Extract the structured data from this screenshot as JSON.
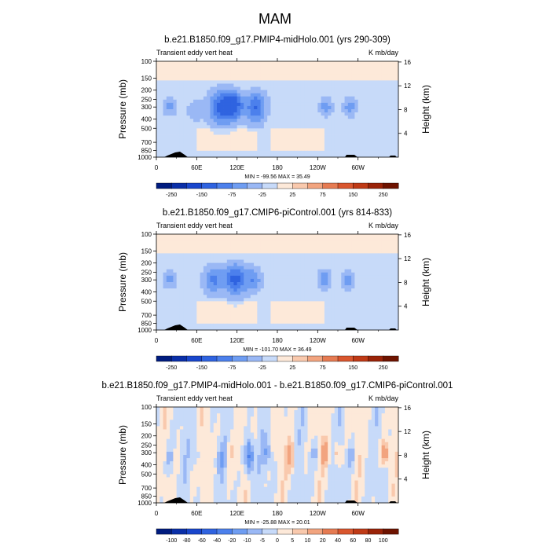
{
  "figure": {
    "title": "MAM"
  },
  "colors": {
    "bg": "#ffffff",
    "axis": "#000000",
    "land": "#000000"
  },
  "chart_data": [
    {
      "type": "heatmap",
      "title": "b.e21.B1850.f09_g17.PMIP4-midHolo.001 (yrs 290-309)",
      "left_label": "Transient eddy vert heat",
      "right_label": "K mb/day",
      "ylabel": "Pressure (mb)",
      "ylabel_right": "Height (km)",
      "x_ticks": [
        "0",
        "60E",
        "120E",
        "180",
        "120W",
        "60W"
      ],
      "y_ticks": [
        "100",
        "150",
        "200",
        "250",
        "300",
        "400",
        "500",
        "700",
        "850",
        "1000"
      ],
      "y_ticks_right": [
        "16",
        "12",
        "8",
        "4"
      ],
      "stats": "MIN = -99.56   MAX =  35.49",
      "min": -99.56,
      "max": 35.49,
      "levels": [
        -300,
        -250,
        -200,
        -150,
        -100,
        -75,
        -50,
        -25,
        0,
        25,
        50,
        75,
        100,
        150,
        200,
        250
      ],
      "label_levels": [
        "-250",
        "-150",
        "-75",
        "-25",
        "25",
        "75",
        "150",
        "250"
      ],
      "colors": [
        "#001c7f",
        "#0a2fa8",
        "#1946cc",
        "#2f63e0",
        "#4c80ec",
        "#6f9df2",
        "#9ab8f5",
        "#c7daf9",
        "#fde9d9",
        "#f9c9ad",
        "#f2a47f",
        "#e67b52",
        "#d9562e",
        "#bf3a16",
        "#9a2308",
        "#6e1300"
      ],
      "eddies": [
        {
          "lon": 20,
          "p": 300,
          "amp": -50,
          "w": 10,
          "h": 0.22
        },
        {
          "lon": 58,
          "p": 330,
          "amp": -35,
          "w": 12,
          "h": 0.28
        },
        {
          "lon": 95,
          "p": 300,
          "amp": -90,
          "w": 18,
          "h": 0.45
        },
        {
          "lon": 115,
          "p": 290,
          "amp": -100,
          "w": 14,
          "h": 0.35
        },
        {
          "lon": 148,
          "p": 300,
          "amp": -90,
          "w": 16,
          "h": 0.4
        },
        {
          "lon": 252,
          "p": 300,
          "amp": -55,
          "w": 10,
          "h": 0.22
        },
        {
          "lon": 288,
          "p": 300,
          "amp": -55,
          "w": 10,
          "h": 0.24
        }
      ]
    },
    {
      "type": "heatmap",
      "title": "b.e21.B1850.f09_g17.CMIP6-piControl.001 (yrs 814-833)",
      "left_label": "Transient eddy vert heat",
      "right_label": "K mb/day",
      "ylabel": "Pressure (mb)",
      "ylabel_right": "Height (km)",
      "x_ticks": [
        "0",
        "60E",
        "120E",
        "180",
        "120W",
        "60W"
      ],
      "y_ticks": [
        "100",
        "150",
        "200",
        "250",
        "300",
        "400",
        "500",
        "700",
        "850",
        "1000"
      ],
      "y_ticks_right": [
        "16",
        "12",
        "8",
        "4"
      ],
      "stats": "MIN = -101.70   MAX =  36.49",
      "min": -101.7,
      "max": 36.49,
      "levels": [
        -300,
        -250,
        -200,
        -150,
        -100,
        -75,
        -50,
        -25,
        0,
        25,
        50,
        75,
        100,
        150,
        200,
        250
      ],
      "label_levels": [
        "-250",
        "-150",
        "-75",
        "-25",
        "25",
        "75",
        "150",
        "250"
      ],
      "colors": [
        "#001c7f",
        "#0a2fa8",
        "#1946cc",
        "#2f63e0",
        "#4c80ec",
        "#6f9df2",
        "#9ab8f5",
        "#c7daf9",
        "#fde9d9",
        "#f9c9ad",
        "#f2a47f",
        "#e67b52",
        "#d9562e",
        "#bf3a16",
        "#9a2308",
        "#6e1300"
      ],
      "eddies": [
        {
          "lon": 20,
          "p": 300,
          "amp": -50,
          "w": 10,
          "h": 0.22
        },
        {
          "lon": 85,
          "p": 300,
          "amp": -70,
          "w": 16,
          "h": 0.35
        },
        {
          "lon": 118,
          "p": 300,
          "amp": -100,
          "w": 16,
          "h": 0.4
        },
        {
          "lon": 145,
          "p": 300,
          "amp": -60,
          "w": 12,
          "h": 0.3
        },
        {
          "lon": 250,
          "p": 300,
          "amp": -60,
          "w": 10,
          "h": 0.24
        },
        {
          "lon": 285,
          "p": 300,
          "amp": -55,
          "w": 10,
          "h": 0.24
        }
      ]
    },
    {
      "type": "heatmap",
      "title": "b.e21.B1850.f09_g17.PMIP4-midHolo.001 - b.e21.B1850.f09_g17.CMIP6-piControl.001",
      "left_label": "Transient eddy vert heat",
      "right_label": "K mb/day",
      "ylabel": "Pressure (mb)",
      "ylabel_right": "Height (km)",
      "x_ticks": [
        "0",
        "60E",
        "120E",
        "180",
        "120W",
        "60W"
      ],
      "y_ticks": [
        "100",
        "150",
        "200",
        "250",
        "300",
        "400",
        "500",
        "700",
        "850",
        "1000"
      ],
      "y_ticks_right": [
        "16",
        "12",
        "8",
        "4"
      ],
      "stats": "MIN = -25.88   MAX =  20.01",
      "min": -25.88,
      "max": 20.01,
      "levels": [
        -120,
        -100,
        -80,
        -60,
        -40,
        -20,
        -10,
        -5,
        0,
        5,
        10,
        20,
        40,
        60,
        80,
        100
      ],
      "label_levels": [
        "-100",
        "-80",
        "-60",
        "-40",
        "-20",
        "-10",
        "-5",
        "0",
        "5",
        "10",
        "20",
        "40",
        "60",
        "80",
        "100"
      ],
      "colors": [
        "#001c7f",
        "#0a2fa8",
        "#1946cc",
        "#2f63e0",
        "#4c80ec",
        "#6f9df2",
        "#9ab8f5",
        "#c7daf9",
        "#fde9d9",
        "#f9c9ad",
        "#f2a47f",
        "#e67b52",
        "#d9562e",
        "#bf3a16",
        "#9a2308",
        "#6e1300"
      ],
      "eddies": [
        {
          "lon": 20,
          "p": 350,
          "amp": -8,
          "w": 6,
          "h": 0.35
        },
        {
          "lon": 58,
          "p": 300,
          "amp": -7,
          "w": 6,
          "h": 0.3
        },
        {
          "lon": 75,
          "p": 250,
          "amp": 5,
          "w": 4,
          "h": 0.4
        },
        {
          "lon": 95,
          "p": 350,
          "amp": -8,
          "w": 6,
          "h": 0.3
        },
        {
          "lon": 110,
          "p": 280,
          "amp": 6,
          "w": 5,
          "h": 0.35
        },
        {
          "lon": 138,
          "p": 330,
          "amp": -24,
          "w": 6,
          "h": 0.4
        },
        {
          "lon": 165,
          "p": 300,
          "amp": -10,
          "w": 6,
          "h": 0.3
        },
        {
          "lon": 200,
          "p": 330,
          "amp": 12,
          "w": 7,
          "h": 0.4
        },
        {
          "lon": 235,
          "p": 300,
          "amp": -7,
          "w": 6,
          "h": 0.3
        },
        {
          "lon": 250,
          "p": 300,
          "amp": 13,
          "w": 6,
          "h": 0.3
        },
        {
          "lon": 268,
          "p": 300,
          "amp": 10,
          "w": 5,
          "h": 0.3
        },
        {
          "lon": 290,
          "p": 330,
          "amp": -8,
          "w": 5,
          "h": 0.3
        },
        {
          "lon": 340,
          "p": 300,
          "amp": 16,
          "w": 6,
          "h": 0.3
        }
      ]
    }
  ]
}
